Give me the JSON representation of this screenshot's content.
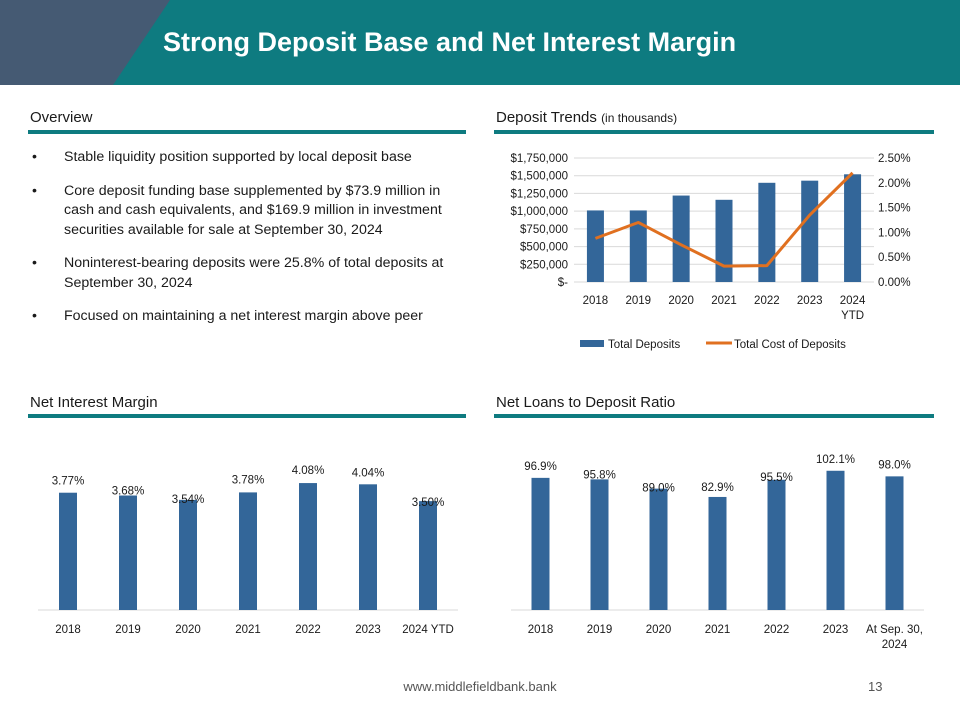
{
  "header": {
    "title": "Strong Deposit Base and Net Interest Margin"
  },
  "colors": {
    "teal": "#0e7b80",
    "slate": "#455a73",
    "bar_blue": "#336699",
    "line_orange": "#e07020"
  },
  "sections": {
    "overview": {
      "title": "Overview",
      "bullets": [
        "Stable liquidity position supported by local deposit base",
        "Core deposit funding base supplemented by $73.9 million in cash and cash equivalents, and $169.9 million in investment securities available for sale at September 30, 2024",
        "Noninterest-bearing deposits were 25.8% of total deposits at September 30, 2024",
        "Focused on maintaining a net interest margin above peer"
      ]
    },
    "deposit_trends": {
      "title": "Deposit Trends",
      "subtitle": "(in thousands)"
    },
    "nim": {
      "title": "Net Interest Margin"
    },
    "ltd": {
      "title": "Net Loans to Deposit Ratio"
    }
  },
  "chart_data": [
    {
      "type": "bar",
      "title": "Deposit Trends",
      "subtitle": "(in thousands)",
      "categories": [
        "2018",
        "2019",
        "2020",
        "2021",
        "2022",
        "2023",
        "2024 YTD"
      ],
      "series": [
        {
          "name": "Total Deposits",
          "type": "bar",
          "axis": "left",
          "values": [
            1010000,
            1010000,
            1220000,
            1160000,
            1400000,
            1430000,
            1520000
          ]
        },
        {
          "name": "Total Cost of Deposits",
          "type": "line",
          "axis": "right",
          "values": [
            0.88,
            1.2,
            0.75,
            0.32,
            0.33,
            1.35,
            2.2
          ]
        }
      ],
      "y_left": {
        "ylim": [
          0,
          1750000
        ],
        "ticks": [
          "$-",
          "$250,000",
          "$500,000",
          "$750,000",
          "$1,000,000",
          "$1,250,000",
          "$1,500,000",
          "$1,750,000"
        ]
      },
      "y_right": {
        "ylim": [
          0,
          2.5
        ],
        "ticks": [
          "0.00%",
          "0.50%",
          "1.00%",
          "1.50%",
          "2.00%",
          "2.50%"
        ]
      },
      "grid": true,
      "legend": "bottom"
    },
    {
      "type": "bar",
      "title": "Net Interest Margin",
      "categories": [
        "2018",
        "2019",
        "2020",
        "2021",
        "2022",
        "2023",
        "2024 YTD"
      ],
      "values": [
        3.77,
        3.68,
        3.54,
        3.78,
        4.08,
        4.04,
        3.5
      ],
      "labels": [
        "3.77%",
        "3.68%",
        "3.54%",
        "3.78%",
        "4.08%",
        "4.04%",
        "3.50%"
      ],
      "grid": false
    },
    {
      "type": "bar",
      "title": "Net Loans to Deposit Ratio",
      "categories": [
        "2018",
        "2019",
        "2020",
        "2021",
        "2022",
        "2023",
        "At Sep. 30, 2024"
      ],
      "values": [
        96.9,
        95.8,
        89.0,
        82.9,
        95.5,
        102.1,
        98.0
      ],
      "labels": [
        "96.9%",
        "95.8%",
        "89.0%",
        "82.9%",
        "95.5%",
        "102.1%",
        "98.0%"
      ],
      "grid": false
    }
  ],
  "footer": {
    "url": "www.middlefieldbank.bank",
    "page": "13"
  }
}
